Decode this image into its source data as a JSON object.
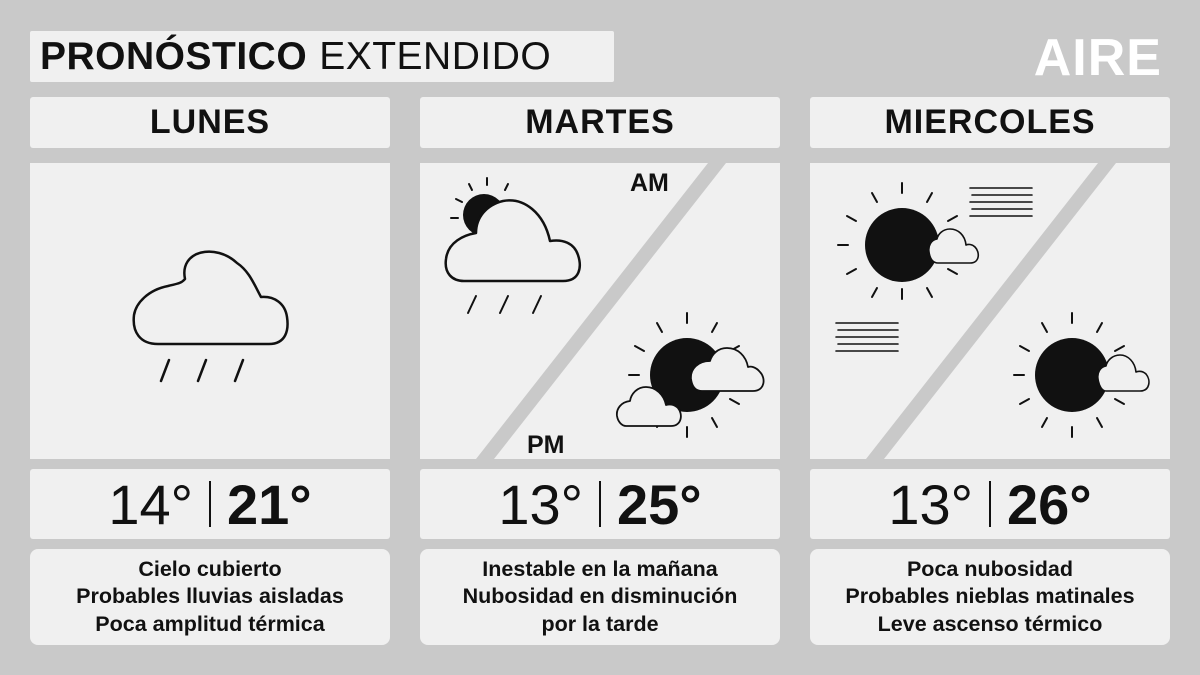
{
  "header": {
    "title_bold": "PRONÓSTICO",
    "title_light": "EXTENDIDO",
    "logo": "AIRE"
  },
  "days": [
    {
      "name": "LUNES",
      "icon": "cloud-rain-icon",
      "temp_min": "14°",
      "temp_max": "21°",
      "description": [
        "Cielo cubierto",
        "Probables lluvias aisladas",
        "Poca amplitud térmica"
      ]
    },
    {
      "name": "MARTES",
      "icon_am": "sun-cloud-rain-icon",
      "icon_pm": "sun-clouds-icon",
      "am_label": "AM",
      "pm_label": "PM",
      "temp_min": "13°",
      "temp_max": "25°",
      "description": [
        "Inestable en la mañana",
        "Nubosidad en disminución",
        "por la tarde"
      ]
    },
    {
      "name": "MIERCOLES",
      "icon_am": "sun-fog-icon",
      "icon_pm": "sun-cloud-icon",
      "temp_min": "13°",
      "temp_max": "26°",
      "description": [
        "Poca nubosidad",
        "Probables nieblas matinales",
        "Leve ascenso térmico"
      ]
    }
  ],
  "colors": {
    "background": "#c9c9c9",
    "panel": "#f0f0f0",
    "ink": "#111111",
    "logo": "#ffffff"
  }
}
